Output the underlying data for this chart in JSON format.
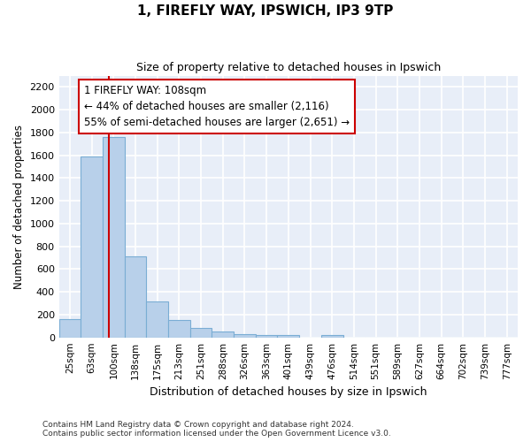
{
  "title1": "1, FIREFLY WAY, IPSWICH, IP3 9TP",
  "title2": "Size of property relative to detached houses in Ipswich",
  "xlabel": "Distribution of detached houses by size in Ipswich",
  "ylabel": "Number of detached properties",
  "footnote": "Contains HM Land Registry data © Crown copyright and database right 2024.\nContains public sector information licensed under the Open Government Licence v3.0.",
  "bar_labels": [
    "25sqm",
    "63sqm",
    "100sqm",
    "138sqm",
    "175sqm",
    "213sqm",
    "251sqm",
    "288sqm",
    "326sqm",
    "363sqm",
    "401sqm",
    "439sqm",
    "476sqm",
    "514sqm",
    "551sqm",
    "589sqm",
    "627sqm",
    "664sqm",
    "702sqm",
    "739sqm",
    "777sqm"
  ],
  "bar_values": [
    160,
    1590,
    1760,
    710,
    315,
    155,
    85,
    50,
    30,
    20,
    20,
    0,
    20,
    0,
    0,
    0,
    0,
    0,
    0,
    0,
    0
  ],
  "bar_color": "#b8d0ea",
  "bar_edgecolor": "#7aadd4",
  "background_color": "#e8eef8",
  "grid_color": "#ffffff",
  "ylim": [
    0,
    2300
  ],
  "yticks": [
    0,
    200,
    400,
    600,
    800,
    1000,
    1200,
    1400,
    1600,
    1800,
    2000,
    2200
  ],
  "annotation_text": "1 FIREFLY WAY: 108sqm\n← 44% of detached houses are smaller (2,116)\n55% of semi-detached houses are larger (2,651) →",
  "vline_color": "#cc0000",
  "annotation_box_edgecolor": "#cc0000",
  "annotation_box_facecolor": "#ffffff",
  "vline_x_index": 2.0
}
